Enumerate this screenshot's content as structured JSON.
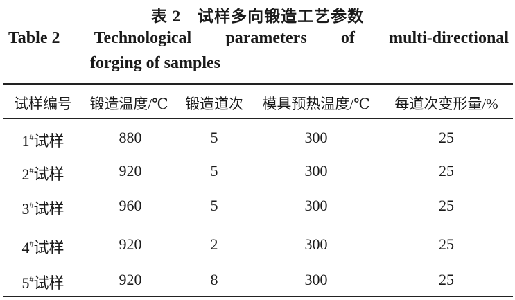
{
  "title_cn": "表 2　试样多向锻造工艺参数",
  "title_en_words": [
    "Table 2",
    "Technological",
    "parameters",
    "of",
    "multi-directional"
  ],
  "title_en_line2": "forging of samples",
  "headers": [
    "试样编号",
    "锻造温度/℃",
    "锻造道次",
    "模具预热温度/℃",
    "每道次变形量/%"
  ],
  "rows": [
    {
      "id": "1",
      "mark": "#",
      "suffix": "试样",
      "temp": "880",
      "passes": "5",
      "die_temp": "300",
      "strain": "25"
    },
    {
      "id": "2",
      "mark": "#",
      "suffix": "试样",
      "temp": "920",
      "passes": "5",
      "die_temp": "300",
      "strain": "25"
    },
    {
      "id": "3",
      "mark": "#",
      "suffix": "试样",
      "temp": "960",
      "passes": "5",
      "die_temp": "300",
      "strain": "25"
    },
    {
      "id": "4",
      "mark": "#",
      "suffix": "试样",
      "temp": "920",
      "passes": "2",
      "die_temp": "300",
      "strain": "25"
    },
    {
      "id": "5",
      "mark": "#",
      "suffix": "试样",
      "temp": "920",
      "passes": "8",
      "die_temp": "300",
      "strain": "25"
    }
  ]
}
